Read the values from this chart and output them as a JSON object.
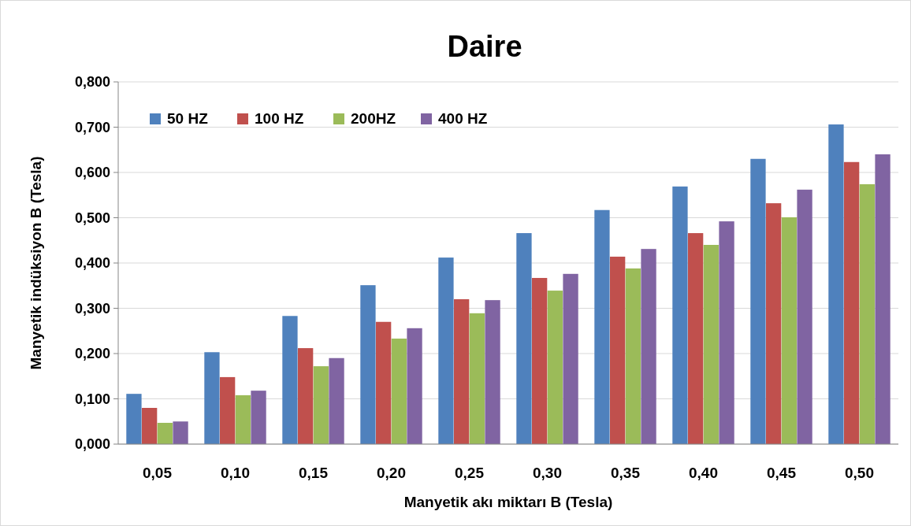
{
  "chart_data": {
    "type": "bar",
    "title": "Daire",
    "xlabel": "Manyetik akı miktarı B (Tesla)",
    "ylabel": "Manyetik indüksiyon B (Tesla)",
    "categories": [
      "0,05",
      "0,10",
      "0,15",
      "0,20",
      "0,25",
      "0,30",
      "0,35",
      "0,40",
      "0,45",
      "0,50"
    ],
    "series": [
      {
        "name": "50 HZ",
        "color": "#4f81bd",
        "values": [
          0.111,
          0.203,
          0.283,
          0.351,
          0.412,
          0.466,
          0.517,
          0.569,
          0.63,
          0.706
        ]
      },
      {
        "name": "100 HZ",
        "color": "#c0504d",
        "values": [
          0.08,
          0.148,
          0.212,
          0.27,
          0.32,
          0.367,
          0.414,
          0.466,
          0.532,
          0.623
        ]
      },
      {
        "name": "200HZ",
        "color": "#9bbb59",
        "values": [
          0.047,
          0.108,
          0.172,
          0.233,
          0.289,
          0.339,
          0.388,
          0.44,
          0.501,
          0.574
        ]
      },
      {
        "name": "400 HZ",
        "color": "#8064a2",
        "values": [
          0.05,
          0.118,
          0.19,
          0.256,
          0.318,
          0.376,
          0.431,
          0.492,
          0.562,
          0.64
        ]
      }
    ],
    "ylim": [
      0,
      0.8
    ],
    "yticks": [
      {
        "value": 0,
        "label": "0,000"
      },
      {
        "value": 0.1,
        "label": "0,100"
      },
      {
        "value": 0.2,
        "label": "0,200"
      },
      {
        "value": 0.3,
        "label": "0,300"
      },
      {
        "value": 0.4,
        "label": "0,400"
      },
      {
        "value": 0.5,
        "label": "0,500"
      },
      {
        "value": 0.6,
        "label": "0,600"
      },
      {
        "value": 0.7,
        "label": "0,700"
      },
      {
        "value": 0.8,
        "label": "0,800"
      }
    ],
    "grid": "y",
    "legend": "top left"
  }
}
